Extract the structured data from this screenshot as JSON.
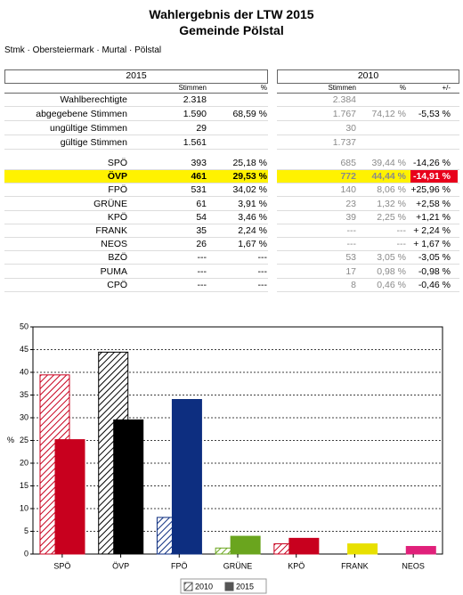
{
  "header": {
    "title": "Wahlergebnis der LTW 2015",
    "subtitle": "Gemeinde Pölstal",
    "breadcrumb": "Stmk · Obersteiermark · Murtal · Pölstal"
  },
  "table": {
    "header_2015": "2015",
    "header_2010": "2010",
    "subheaders": [
      "Stimmen",
      "%",
      "Stimmen",
      "%",
      "+/-"
    ],
    "summary_rows": [
      [
        "Wahlberechtigte",
        "2.318",
        null,
        "2.384",
        null,
        null
      ],
      [
        "abgegebene Stimmen",
        "1.590",
        "68,59 %",
        "1.767",
        "74,12 %",
        "-5,53 %"
      ],
      [
        "ungültige Stimmen",
        "29",
        null,
        "30",
        null,
        null
      ],
      [
        "gültige Stimmen",
        "1.561",
        null,
        "1.737",
        null,
        null
      ]
    ],
    "party_rows": [
      [
        "SPÖ",
        "393",
        "25,18 %",
        "685",
        "39,44 %",
        "-14,26 %"
      ],
      [
        "ÖVP",
        "461",
        "29,53 %",
        "772",
        "44,44 %",
        "-14,91 %"
      ],
      [
        "FPÖ",
        "531",
        "34,02 %",
        "140",
        "8,06 %",
        "+25,96 %"
      ],
      [
        "GRÜNE",
        "61",
        "3,91 %",
        "23",
        "1,32 %",
        "+2,58 %"
      ],
      [
        "KPÖ",
        "54",
        "3,46 %",
        "39",
        "2,25 %",
        "+1,21 %"
      ],
      [
        "FRANK",
        "35",
        "2,24 %",
        "---",
        "---",
        "+ 2,24 %"
      ],
      [
        "NEOS",
        "26",
        "1,67 %",
        "---",
        "---",
        "+ 1,67 %"
      ],
      [
        "BZÖ",
        "---",
        "---",
        "53",
        "3,05 %",
        "-3,05 %"
      ],
      [
        "PUMA",
        "---",
        "---",
        "17",
        "0,98 %",
        "-0,98 %"
      ],
      [
        "CPÖ",
        "---",
        "---",
        "8",
        "0,46 %",
        "-0,46 %"
      ]
    ]
  },
  "chart_data": {
    "type": "bar",
    "y_label": "%",
    "categories": [
      "SPÖ",
      "ÖVP",
      "FPÖ",
      "GRÜNE",
      "KPÖ",
      "FRANK",
      "NEOS"
    ],
    "colors": [
      "#c8001e",
      "#000000",
      "#0d2e80",
      "#6aa51e",
      "#c8001e",
      "#e8e000",
      "#e0207a"
    ],
    "series": [
      {
        "name": "2010",
        "color": "#555555",
        "hatched": true,
        "values": [
          39.44,
          44.44,
          8.06,
          1.32,
          2.25,
          null,
          null
        ]
      },
      {
        "name": "2015",
        "color": "#555555",
        "hatched": false,
        "values": [
          25.18,
          29.53,
          34.02,
          3.91,
          3.46,
          2.24,
          1.67
        ]
      }
    ],
    "ylim": [
      0,
      50
    ],
    "yticks": [
      0,
      5,
      10,
      15,
      20,
      25,
      30,
      35,
      40,
      45,
      50
    ],
    "grid": true
  }
}
